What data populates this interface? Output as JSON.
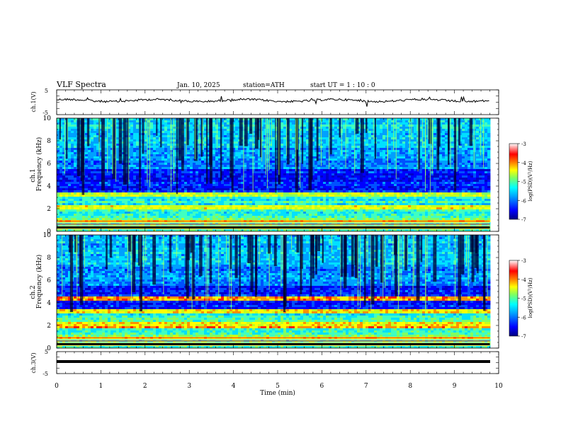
{
  "header": {
    "title": "VLF  Spectra",
    "date": "Jan. 10, 2025",
    "station": "station=ATH",
    "start": "start  UT  =   1 : 10 : 0"
  },
  "chart_data": [
    {
      "type": "line",
      "panel": "ch1-voltage",
      "ylabel": "ch.1(V)",
      "ylim": [
        -5,
        5
      ],
      "yticks": [
        "5",
        "-5"
      ],
      "xlim": [
        0,
        10
      ]
    },
    {
      "type": "heatmap",
      "panel": "ch1-spectrogram",
      "ylabel": "Frequency (kHz)",
      "channel_label": "ch.1",
      "ylim": [
        0,
        10
      ],
      "yticks": [
        "0",
        "2",
        "4",
        "6",
        "8",
        "10"
      ],
      "xlim": [
        0,
        10
      ],
      "colorbar": {
        "label": "log(PSD)(V²/Hz)",
        "range": [
          -7,
          -3
        ],
        "ticks": [
          "-3",
          "-4",
          "-5",
          "-6",
          "-7"
        ]
      }
    },
    {
      "type": "heatmap",
      "panel": "ch2-spectrogram",
      "ylabel": "Frequency (kHz)",
      "channel_label": "ch.2",
      "ylim": [
        0,
        10
      ],
      "yticks": [
        "0",
        "2",
        "4",
        "6",
        "8",
        "10"
      ],
      "xlim": [
        0,
        10
      ],
      "colorbar": {
        "label": "log(PSD)(V²/Hz)",
        "range": [
          -7,
          -3
        ],
        "ticks": [
          "-3",
          "-4",
          "-5",
          "-6",
          "-7"
        ]
      }
    },
    {
      "type": "line",
      "panel": "ch3-voltage",
      "ylabel": "ch.3(V)",
      "ylim": [
        -5,
        5
      ],
      "yticks": [
        "5",
        "-5"
      ],
      "xlim": [
        0,
        10
      ],
      "xlabel": "Time  (min)",
      "xticks": [
        "0",
        "1",
        "2",
        "3",
        "4",
        "5",
        "6",
        "7",
        "8",
        "9",
        "10"
      ]
    }
  ],
  "colors": {
    "jet": [
      "#00007f",
      "#0000ff",
      "#0080ff",
      "#00ffff",
      "#80ff80",
      "#ffff00",
      "#ff8000",
      "#ff0000",
      "#ffffff"
    ]
  }
}
